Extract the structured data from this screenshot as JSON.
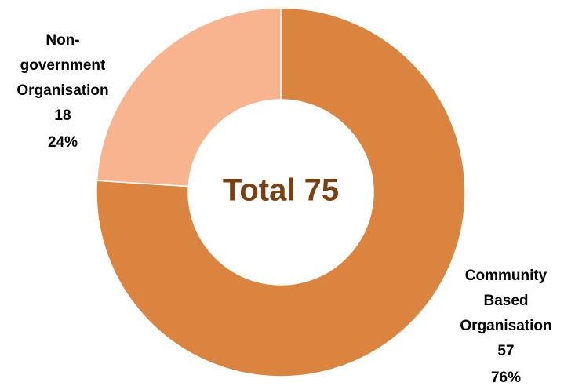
{
  "chart_data": {
    "type": "donut",
    "center_label": "Total 75",
    "categories": [
      [
        "Community",
        "Based",
        "Organisation"
      ],
      [
        "Non-",
        "government",
        "Organisation"
      ]
    ],
    "values": [
      57,
      18
    ],
    "percentage_labels": [
      "76%",
      "24%"
    ],
    "colors": [
      "#da843f",
      "#f8b48e"
    ]
  }
}
